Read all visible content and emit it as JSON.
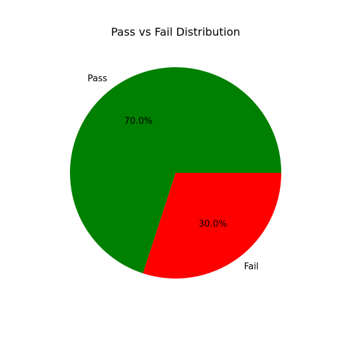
{
  "chart_data": {
    "type": "pie",
    "title": "Pass vs Fail Distribution",
    "slices": [
      {
        "label": "Pass",
        "value": 70.0,
        "pct_label": "70.0%",
        "color": "#008000"
      },
      {
        "label": "Fail",
        "value": 30.0,
        "pct_label": "30.0%",
        "color": "#ff0000"
      }
    ]
  }
}
